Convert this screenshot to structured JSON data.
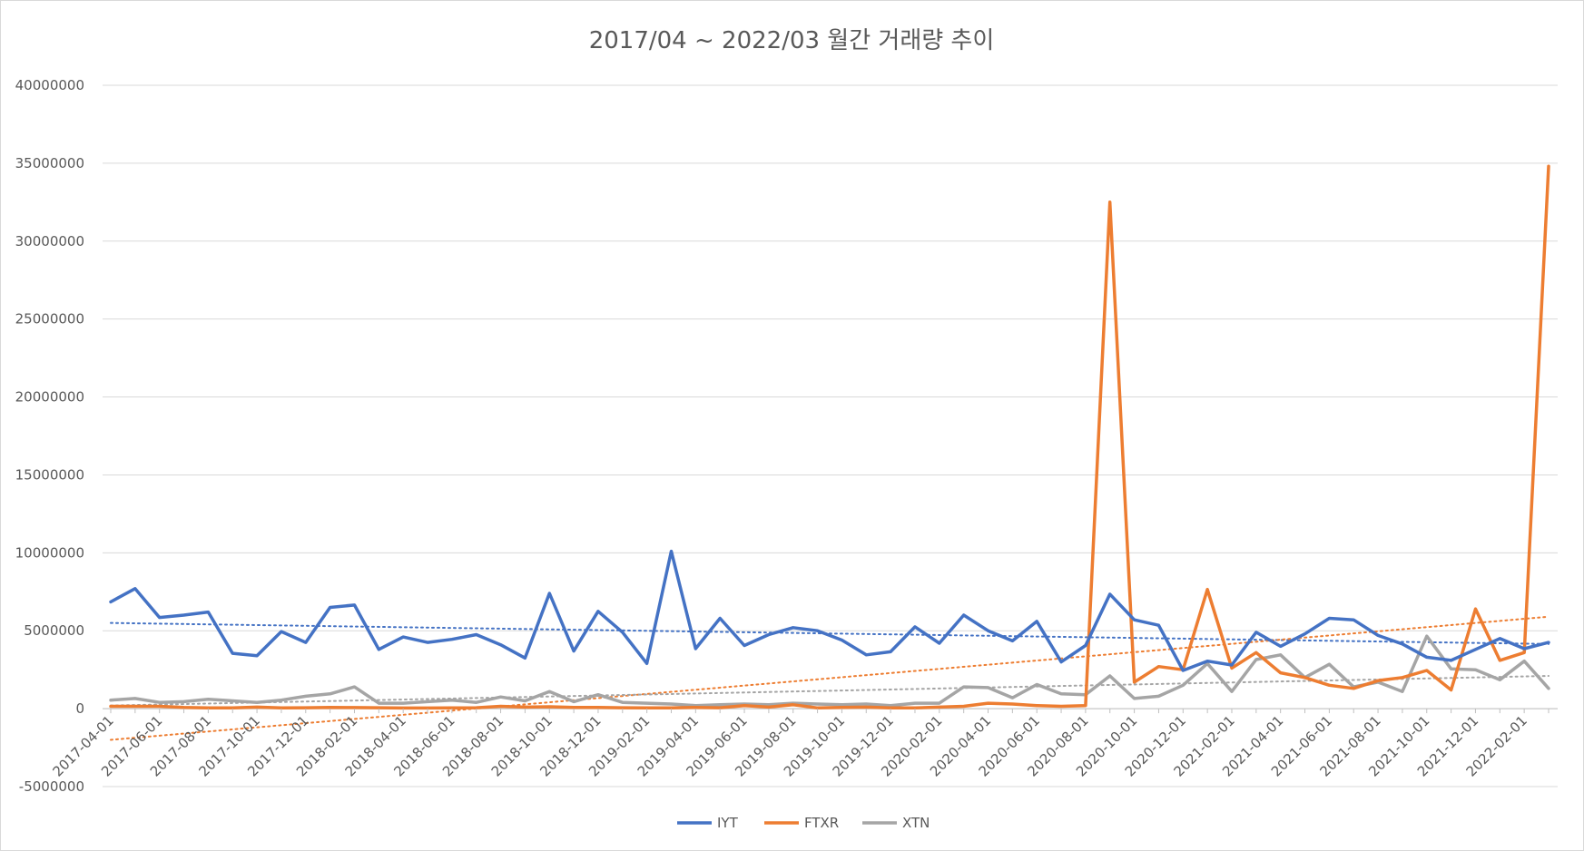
{
  "chart_data": {
    "type": "line",
    "title": "2017/04 ~ 2022/03 월간 거래량 추이",
    "xlabel": "",
    "ylabel": "",
    "ylim": [
      -5000000,
      40000000
    ],
    "yticks": [
      -5000000,
      0,
      5000000,
      10000000,
      15000000,
      20000000,
      25000000,
      30000000,
      35000000,
      40000000
    ],
    "ytick_labels": [
      "-5000000",
      "0",
      "5000000",
      "10000000",
      "15000000",
      "20000000",
      "25000000",
      "30000000",
      "35000000",
      "40000000"
    ],
    "grid": true,
    "legend": "bottom",
    "x": [
      "2017-04-01",
      "2017-05-01",
      "2017-06-01",
      "2017-07-01",
      "2017-08-01",
      "2017-09-01",
      "2017-10-01",
      "2017-11-01",
      "2017-12-01",
      "2018-01-01",
      "2018-02-01",
      "2018-03-01",
      "2018-04-01",
      "2018-05-01",
      "2018-06-01",
      "2018-07-01",
      "2018-08-01",
      "2018-09-01",
      "2018-10-01",
      "2018-11-01",
      "2018-12-01",
      "2019-01-01",
      "2019-02-01",
      "2019-03-01",
      "2019-04-01",
      "2019-05-01",
      "2019-06-01",
      "2019-07-01",
      "2019-08-01",
      "2019-09-01",
      "2019-10-01",
      "2019-11-01",
      "2019-12-01",
      "2020-01-01",
      "2020-02-01",
      "2020-03-01",
      "2020-04-01",
      "2020-05-01",
      "2020-06-01",
      "2020-07-01",
      "2020-08-01",
      "2020-09-01",
      "2020-10-01",
      "2020-11-01",
      "2020-12-01",
      "2021-01-01",
      "2021-02-01",
      "2021-03-01",
      "2021-04-01",
      "2021-05-01",
      "2021-06-01",
      "2021-07-01",
      "2021-08-01",
      "2021-09-01",
      "2021-10-01",
      "2021-11-01",
      "2021-12-01",
      "2022-01-01",
      "2022-02-01",
      "2022-03-01"
    ],
    "xtick_labels": [
      "2017-04-01",
      "2017-06-01",
      "2017-08-01",
      "2017-10-01",
      "2017-12-01",
      "2018-02-01",
      "2018-04-01",
      "2018-06-01",
      "2018-08-01",
      "2018-10-01",
      "2018-12-01",
      "2019-02-01",
      "2019-04-01",
      "2019-06-01",
      "2019-08-01",
      "2019-10-01",
      "2019-12-01",
      "2020-02-01",
      "2020-04-01",
      "2020-06-01",
      "2020-08-01",
      "2020-10-01",
      "2020-12-01",
      "2021-02-01",
      "2021-04-01",
      "2021-06-01",
      "2021-08-01",
      "2021-10-01",
      "2021-12-01",
      "2022-02-01"
    ],
    "series": [
      {
        "name": "IYT",
        "color": "#4472c4",
        "trendline": [
          5500000,
          4150000
        ],
        "values": [
          6850000,
          7700000,
          5850000,
          6000000,
          6200000,
          3550000,
          3400000,
          4950000,
          4250000,
          6500000,
          6650000,
          3800000,
          4600000,
          4250000,
          4450000,
          4750000,
          4100000,
          3250000,
          7400000,
          3700000,
          6250000,
          4900000,
          2900000,
          10100000,
          3850000,
          5800000,
          4050000,
          4750000,
          5200000,
          5000000,
          4400000,
          3450000,
          3650000,
          5250000,
          4200000,
          6000000,
          5000000,
          4350000,
          5600000,
          3000000,
          4050000,
          7350000,
          5700000,
          5350000,
          2450000,
          3050000,
          2800000,
          4900000,
          4000000,
          4800000,
          5800000,
          5700000,
          4700000,
          4150000,
          3300000,
          3100000,
          3800000,
          4500000,
          3850000,
          4250000
        ]
      },
      {
        "name": "FTXR",
        "color": "#ed7d31",
        "trendline": [
          -2000000,
          5900000
        ],
        "values": [
          150000,
          150000,
          150000,
          80000,
          50000,
          50000,
          100000,
          50000,
          60000,
          80000,
          70000,
          60000,
          40000,
          40000,
          50000,
          60000,
          150000,
          100000,
          120000,
          80000,
          80000,
          60000,
          50000,
          50000,
          80000,
          60000,
          200000,
          100000,
          250000,
          50000,
          80000,
          100000,
          50000,
          50000,
          100000,
          150000,
          350000,
          300000,
          200000,
          150000,
          200000,
          32500000,
          1700000,
          2700000,
          2500000,
          7650000,
          2600000,
          3600000,
          2300000,
          2000000,
          1500000,
          1300000,
          1800000,
          2000000,
          2450000,
          1200000,
          6400000,
          3100000,
          3600000,
          34800000
        ]
      },
      {
        "name": "XTN",
        "color": "#a5a5a5",
        "trendline": [
          200000,
          2100000
        ],
        "values": [
          550000,
          650000,
          400000,
          450000,
          600000,
          500000,
          400000,
          550000,
          800000,
          950000,
          1400000,
          350000,
          350000,
          450000,
          550000,
          400000,
          750000,
          500000,
          1100000,
          450000,
          900000,
          400000,
          350000,
          300000,
          200000,
          250000,
          300000,
          250000,
          350000,
          300000,
          250000,
          300000,
          200000,
          350000,
          350000,
          1400000,
          1350000,
          700000,
          1550000,
          950000,
          900000,
          2100000,
          650000,
          800000,
          1500000,
          2900000,
          1100000,
          3150000,
          3450000,
          2000000,
          2850000,
          1400000,
          1700000,
          1100000,
          4650000,
          2550000,
          2500000,
          1850000,
          3050000,
          1300000
        ]
      }
    ]
  }
}
